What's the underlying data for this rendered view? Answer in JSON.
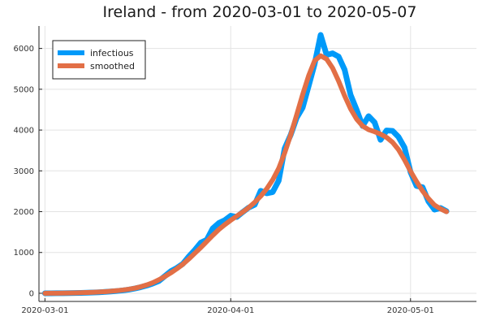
{
  "chart_data": {
    "type": "line",
    "title": "Ireland - from 2020-03-01 to 2020-05-07",
    "xlabel": "",
    "ylabel": "",
    "x_start": "2020-03-01",
    "x_end": "2020-05-07",
    "xlim": [
      "2020-02-29",
      "2020-05-12"
    ],
    "ylim": [
      -200,
      6550
    ],
    "x_ticks": [
      "2020-03-01",
      "2020-04-01",
      "2020-05-01"
    ],
    "y_ticks": [
      0,
      1000,
      2000,
      3000,
      4000,
      5000,
      6000
    ],
    "grid": true,
    "legend_position": "top-left",
    "series": [
      {
        "name": "infectious",
        "color": "#009af9",
        "values": [
          0,
          0,
          1,
          2,
          4,
          6,
          10,
          13,
          19,
          25,
          33,
          43,
          55,
          70,
          90,
          118,
          150,
          190,
          240,
          300,
          420,
          540,
          620,
          720,
          900,
          1060,
          1240,
          1310,
          1590,
          1720,
          1790,
          1900,
          1870,
          1990,
          2100,
          2170,
          2510,
          2450,
          2480,
          2760,
          3550,
          3880,
          4300,
          4550,
          5080,
          5620,
          6330,
          5840,
          5880,
          5800,
          5480,
          4860,
          4500,
          4100,
          4340,
          4190,
          3760,
          3990,
          3980,
          3830,
          3570,
          2970,
          2630,
          2600,
          2250,
          2050,
          2090,
          2010
        ]
      },
      {
        "name": "smoothed",
        "color": "#e26f46",
        "values": [
          0,
          1,
          2,
          4,
          6,
          9,
          13,
          18,
          24,
          31,
          40,
          51,
          64,
          80,
          100,
          125,
          160,
          205,
          260,
          330,
          410,
          500,
          600,
          710,
          840,
          980,
          1120,
          1270,
          1420,
          1560,
          1680,
          1790,
          1890,
          1990,
          2100,
          2230,
          2380,
          2560,
          2780,
          3060,
          3440,
          3880,
          4370,
          4870,
          5330,
          5700,
          5820,
          5740,
          5520,
          5200,
          4840,
          4520,
          4270,
          4100,
          4010,
          3960,
          3900,
          3820,
          3700,
          3520,
          3270,
          2990,
          2740,
          2510,
          2320,
          2160,
          2070,
          2000
        ]
      }
    ]
  }
}
